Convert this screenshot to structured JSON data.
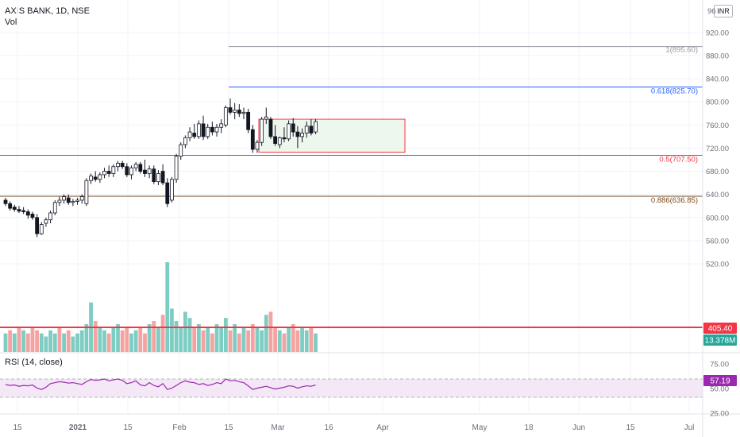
{
  "header": {
    "symbol_line": "AXIS BANK, 1D, NSE",
    "vol_label": "Vol",
    "rsi_label": "RSI (14, close)",
    "currency": "INR",
    "cut_label": "96"
  },
  "chart_data": {
    "type": "candlestick",
    "title": "AXIS BANK, 1D, NSE",
    "price_axis": {
      "min": 500,
      "max": 960,
      "ticks": [
        520,
        560,
        600,
        640,
        680,
        720,
        760,
        800,
        840,
        880,
        920
      ],
      "tick_labels": [
        "520.00",
        "560.00",
        "600.00",
        "640.00",
        "680.00",
        "720.00",
        "760.00",
        "800.00",
        "840.00",
        "880.00",
        "920.00"
      ]
    },
    "x_axis": {
      "labels": [
        "15",
        "2021",
        "15",
        "Feb",
        "15",
        "Mar",
        "16",
        "Apr",
        "May",
        "18",
        "Jun",
        "15",
        "Jul"
      ]
    },
    "candles": [
      [
        630,
        634,
        620,
        624
      ],
      [
        624,
        628,
        612,
        616
      ],
      [
        618,
        622,
        610,
        614
      ],
      [
        614,
        620,
        608,
        611
      ],
      [
        612,
        618,
        606,
        610
      ],
      [
        610,
        614,
        598,
        604
      ],
      [
        606,
        610,
        596,
        600
      ],
      [
        600,
        606,
        566,
        572
      ],
      [
        572,
        592,
        570,
        588
      ],
      [
        590,
        600,
        584,
        596
      ],
      [
        596,
        612,
        590,
        608
      ],
      [
        608,
        630,
        604,
        626
      ],
      [
        626,
        636,
        620,
        630
      ],
      [
        630,
        640,
        624,
        636
      ],
      [
        634,
        640,
        622,
        626
      ],
      [
        626,
        632,
        620,
        628
      ],
      [
        628,
        634,
        622,
        630
      ],
      [
        630,
        640,
        624,
        636
      ],
      [
        624,
        668,
        620,
        664
      ],
      [
        664,
        676,
        658,
        672
      ],
      [
        670,
        680,
        662,
        666
      ],
      [
        666,
        678,
        660,
        674
      ],
      [
        674,
        686,
        668,
        680
      ],
      [
        680,
        690,
        670,
        676
      ],
      [
        676,
        692,
        670,
        688
      ],
      [
        688,
        698,
        680,
        694
      ],
      [
        694,
        698,
        684,
        688
      ],
      [
        688,
        694,
        670,
        674
      ],
      [
        674,
        690,
        666,
        686
      ],
      [
        686,
        696,
        680,
        692
      ],
      [
        692,
        696,
        676,
        680
      ],
      [
        682,
        700,
        670,
        676
      ],
      [
        676,
        690,
        668,
        684
      ],
      [
        684,
        690,
        658,
        662
      ],
      [
        662,
        682,
        656,
        676
      ],
      [
        680,
        692,
        656,
        660
      ],
      [
        660,
        668,
        618,
        624
      ],
      [
        630,
        670,
        626,
        666
      ],
      [
        666,
        710,
        660,
        706
      ],
      [
        706,
        730,
        700,
        726
      ],
      [
        726,
        742,
        720,
        738
      ],
      [
        738,
        756,
        732,
        748
      ],
      [
        746,
        762,
        736,
        740
      ],
      [
        740,
        768,
        736,
        762
      ],
      [
        762,
        776,
        734,
        740
      ],
      [
        740,
        762,
        736,
        756
      ],
      [
        756,
        766,
        742,
        748
      ],
      [
        748,
        762,
        740,
        756
      ],
      [
        756,
        770,
        746,
        762
      ],
      [
        760,
        794,
        756,
        790
      ],
      [
        790,
        806,
        778,
        782
      ],
      [
        782,
        798,
        770,
        786
      ],
      [
        786,
        796,
        774,
        780
      ],
      [
        780,
        790,
        770,
        782
      ],
      [
        782,
        788,
        746,
        752
      ],
      [
        752,
        760,
        712,
        718
      ],
      [
        718,
        734,
        712,
        730
      ],
      [
        730,
        774,
        724,
        770
      ],
      [
        770,
        790,
        762,
        774
      ],
      [
        770,
        774,
        736,
        740
      ],
      [
        740,
        760,
        724,
        728
      ],
      [
        726,
        740,
        720,
        738
      ],
      [
        738,
        756,
        730,
        736
      ],
      [
        736,
        768,
        732,
        762
      ],
      [
        762,
        772,
        740,
        748
      ],
      [
        748,
        758,
        720,
        740
      ],
      [
        740,
        754,
        730,
        746
      ],
      [
        746,
        766,
        738,
        758
      ],
      [
        758,
        770,
        742,
        746
      ],
      [
        748,
        770,
        744,
        766
      ]
    ],
    "volume": {
      "values": [
        6,
        7,
        6,
        8,
        7,
        6,
        8,
        7,
        6,
        5,
        7,
        6,
        8,
        6,
        7,
        5,
        6,
        7,
        9,
        16,
        10,
        8,
        7,
        6,
        8,
        9,
        7,
        8,
        6,
        7,
        8,
        6,
        9,
        10,
        8,
        12,
        29,
        14,
        10,
        8,
        13,
        11,
        8,
        9,
        7,
        8,
        6,
        9,
        8,
        11,
        7,
        9,
        6,
        8,
        7,
        9,
        8,
        7,
        12,
        13,
        8,
        7,
        6,
        8,
        9,
        7,
        8,
        7,
        8,
        6
      ],
      "up_color": "#7ecdc3",
      "down_color": "#f4a3a1",
      "up_flags": [
        1,
        0,
        1,
        0,
        1,
        0,
        0,
        0,
        1,
        1,
        1,
        1,
        0,
        1,
        0,
        1,
        1,
        1,
        1,
        1,
        0,
        1,
        1,
        0,
        1,
        1,
        0,
        0,
        1,
        1,
        0,
        0,
        1,
        0,
        1,
        0,
        1,
        1,
        1,
        1,
        1,
        1,
        0,
        1,
        0,
        1,
        0,
        1,
        1,
        1,
        0,
        1,
        0,
        1,
        0,
        0,
        1,
        1,
        1,
        0,
        0,
        1,
        0,
        1,
        0,
        0,
        1,
        1,
        0,
        1
      ]
    },
    "fib_levels": [
      {
        "label": "1(895.60)",
        "value": 895.6,
        "color": "#9598a1"
      },
      {
        "label": "0.618(825.70)",
        "value": 825.7,
        "color": "#2962ff"
      },
      {
        "label": "0.5(707.50)",
        "value": 707.5,
        "color": "#f23645"
      },
      {
        "label": "0.886(636.85)",
        "value": 636.85,
        "color": "#7b4a1e"
      }
    ],
    "rectangle": {
      "top": 770,
      "bottom": 713,
      "color": "#f23645",
      "fill": "#e8f5e9"
    },
    "badges": [
      {
        "label": "405.40",
        "color": "#f23645"
      },
      {
        "label": "13.378M",
        "color": "#26a69a"
      }
    ],
    "rsi": {
      "values": [
        58,
        56,
        57,
        54,
        56,
        55,
        57,
        50,
        47,
        52,
        60,
        62,
        64,
        63,
        61,
        62,
        60,
        58,
        64,
        69,
        67,
        68,
        70,
        66,
        68,
        70,
        67,
        60,
        62,
        66,
        57,
        55,
        62,
        56,
        53,
        60,
        47,
        50,
        56,
        62,
        66,
        63,
        62,
        58,
        60,
        56,
        58,
        62,
        60,
        70,
        66,
        67,
        64,
        62,
        55,
        47,
        50,
        52,
        54,
        51,
        48,
        50,
        52,
        55,
        54,
        50,
        53,
        55,
        54,
        57
      ],
      "ticks": [
        75,
        50,
        25
      ],
      "tick_labels": [
        "75.00",
        "50.00",
        "25.00"
      ],
      "current_label": "57.19",
      "color": "#9c27b0"
    }
  }
}
